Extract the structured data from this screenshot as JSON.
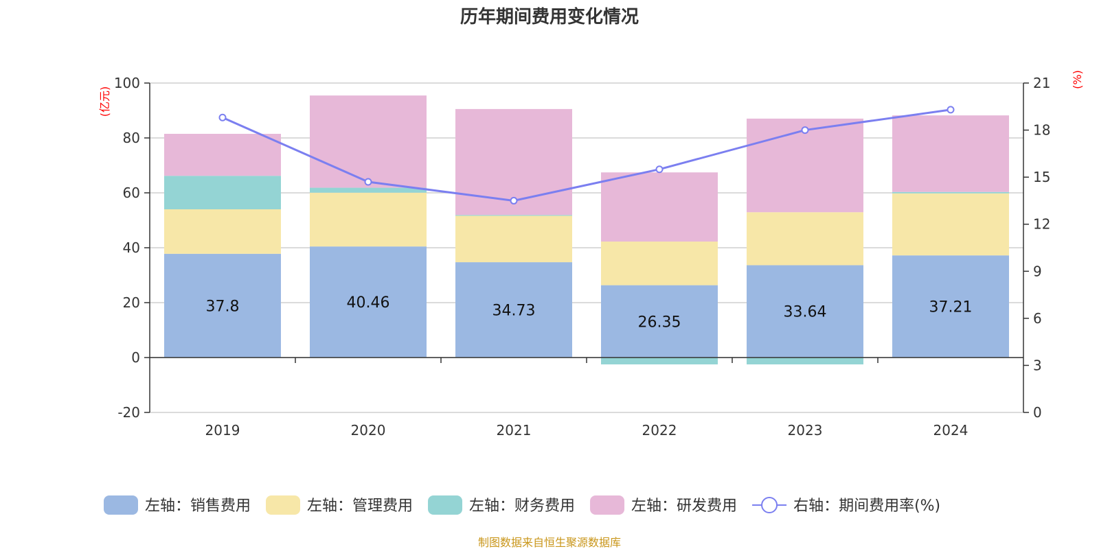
{
  "chart_data": {
    "type": "bar",
    "stacked": true,
    "title": "历年期间费用变化情况",
    "categories": [
      "2019",
      "2020",
      "2021",
      "2022",
      "2023",
      "2024"
    ],
    "series": [
      {
        "name": "左轴：销售费用",
        "axis": "left",
        "color": "#9bb8e2",
        "values": [
          37.8,
          40.46,
          34.73,
          26.35,
          33.64,
          37.21
        ],
        "labels": [
          "37.8",
          "40.46",
          "34.73",
          "26.35",
          "33.64",
          "37.21"
        ]
      },
      {
        "name": "左轴：管理费用",
        "axis": "left",
        "color": "#f7e7a8",
        "values": [
          16.2,
          19.6,
          16.9,
          15.9,
          19.3,
          22.6
        ]
      },
      {
        "name": "左轴：财务费用",
        "axis": "left",
        "color": "#94d4d4",
        "values": [
          12.2,
          1.8,
          0.3,
          -2.5,
          -2.5,
          0.5
        ]
      },
      {
        "name": "左轴：研发费用",
        "axis": "left",
        "color": "#e7b8d8",
        "values": [
          15.3,
          33.6,
          38.6,
          25.2,
          34.1,
          27.9
        ]
      },
      {
        "name": "右轴：期间费用率(%)",
        "axis": "right",
        "type": "line",
        "color": "#7b7ff0",
        "values": [
          18.8,
          14.7,
          13.5,
          15.5,
          18.0,
          19.3
        ]
      }
    ],
    "left_axis": {
      "unit": "(亿元)",
      "ylim": [
        -20,
        100
      ],
      "ticks": [
        "100",
        "80",
        "60",
        "40",
        "20",
        "0",
        "-20"
      ]
    },
    "right_axis": {
      "unit": "(%)",
      "ylim": [
        0,
        21
      ],
      "ticks": [
        "21",
        "18",
        "15",
        "12",
        "9",
        "6",
        "3",
        "0"
      ]
    },
    "grid": true,
    "legend_position": "bottom",
    "source": "制图数据来自恒生聚源数据库"
  }
}
